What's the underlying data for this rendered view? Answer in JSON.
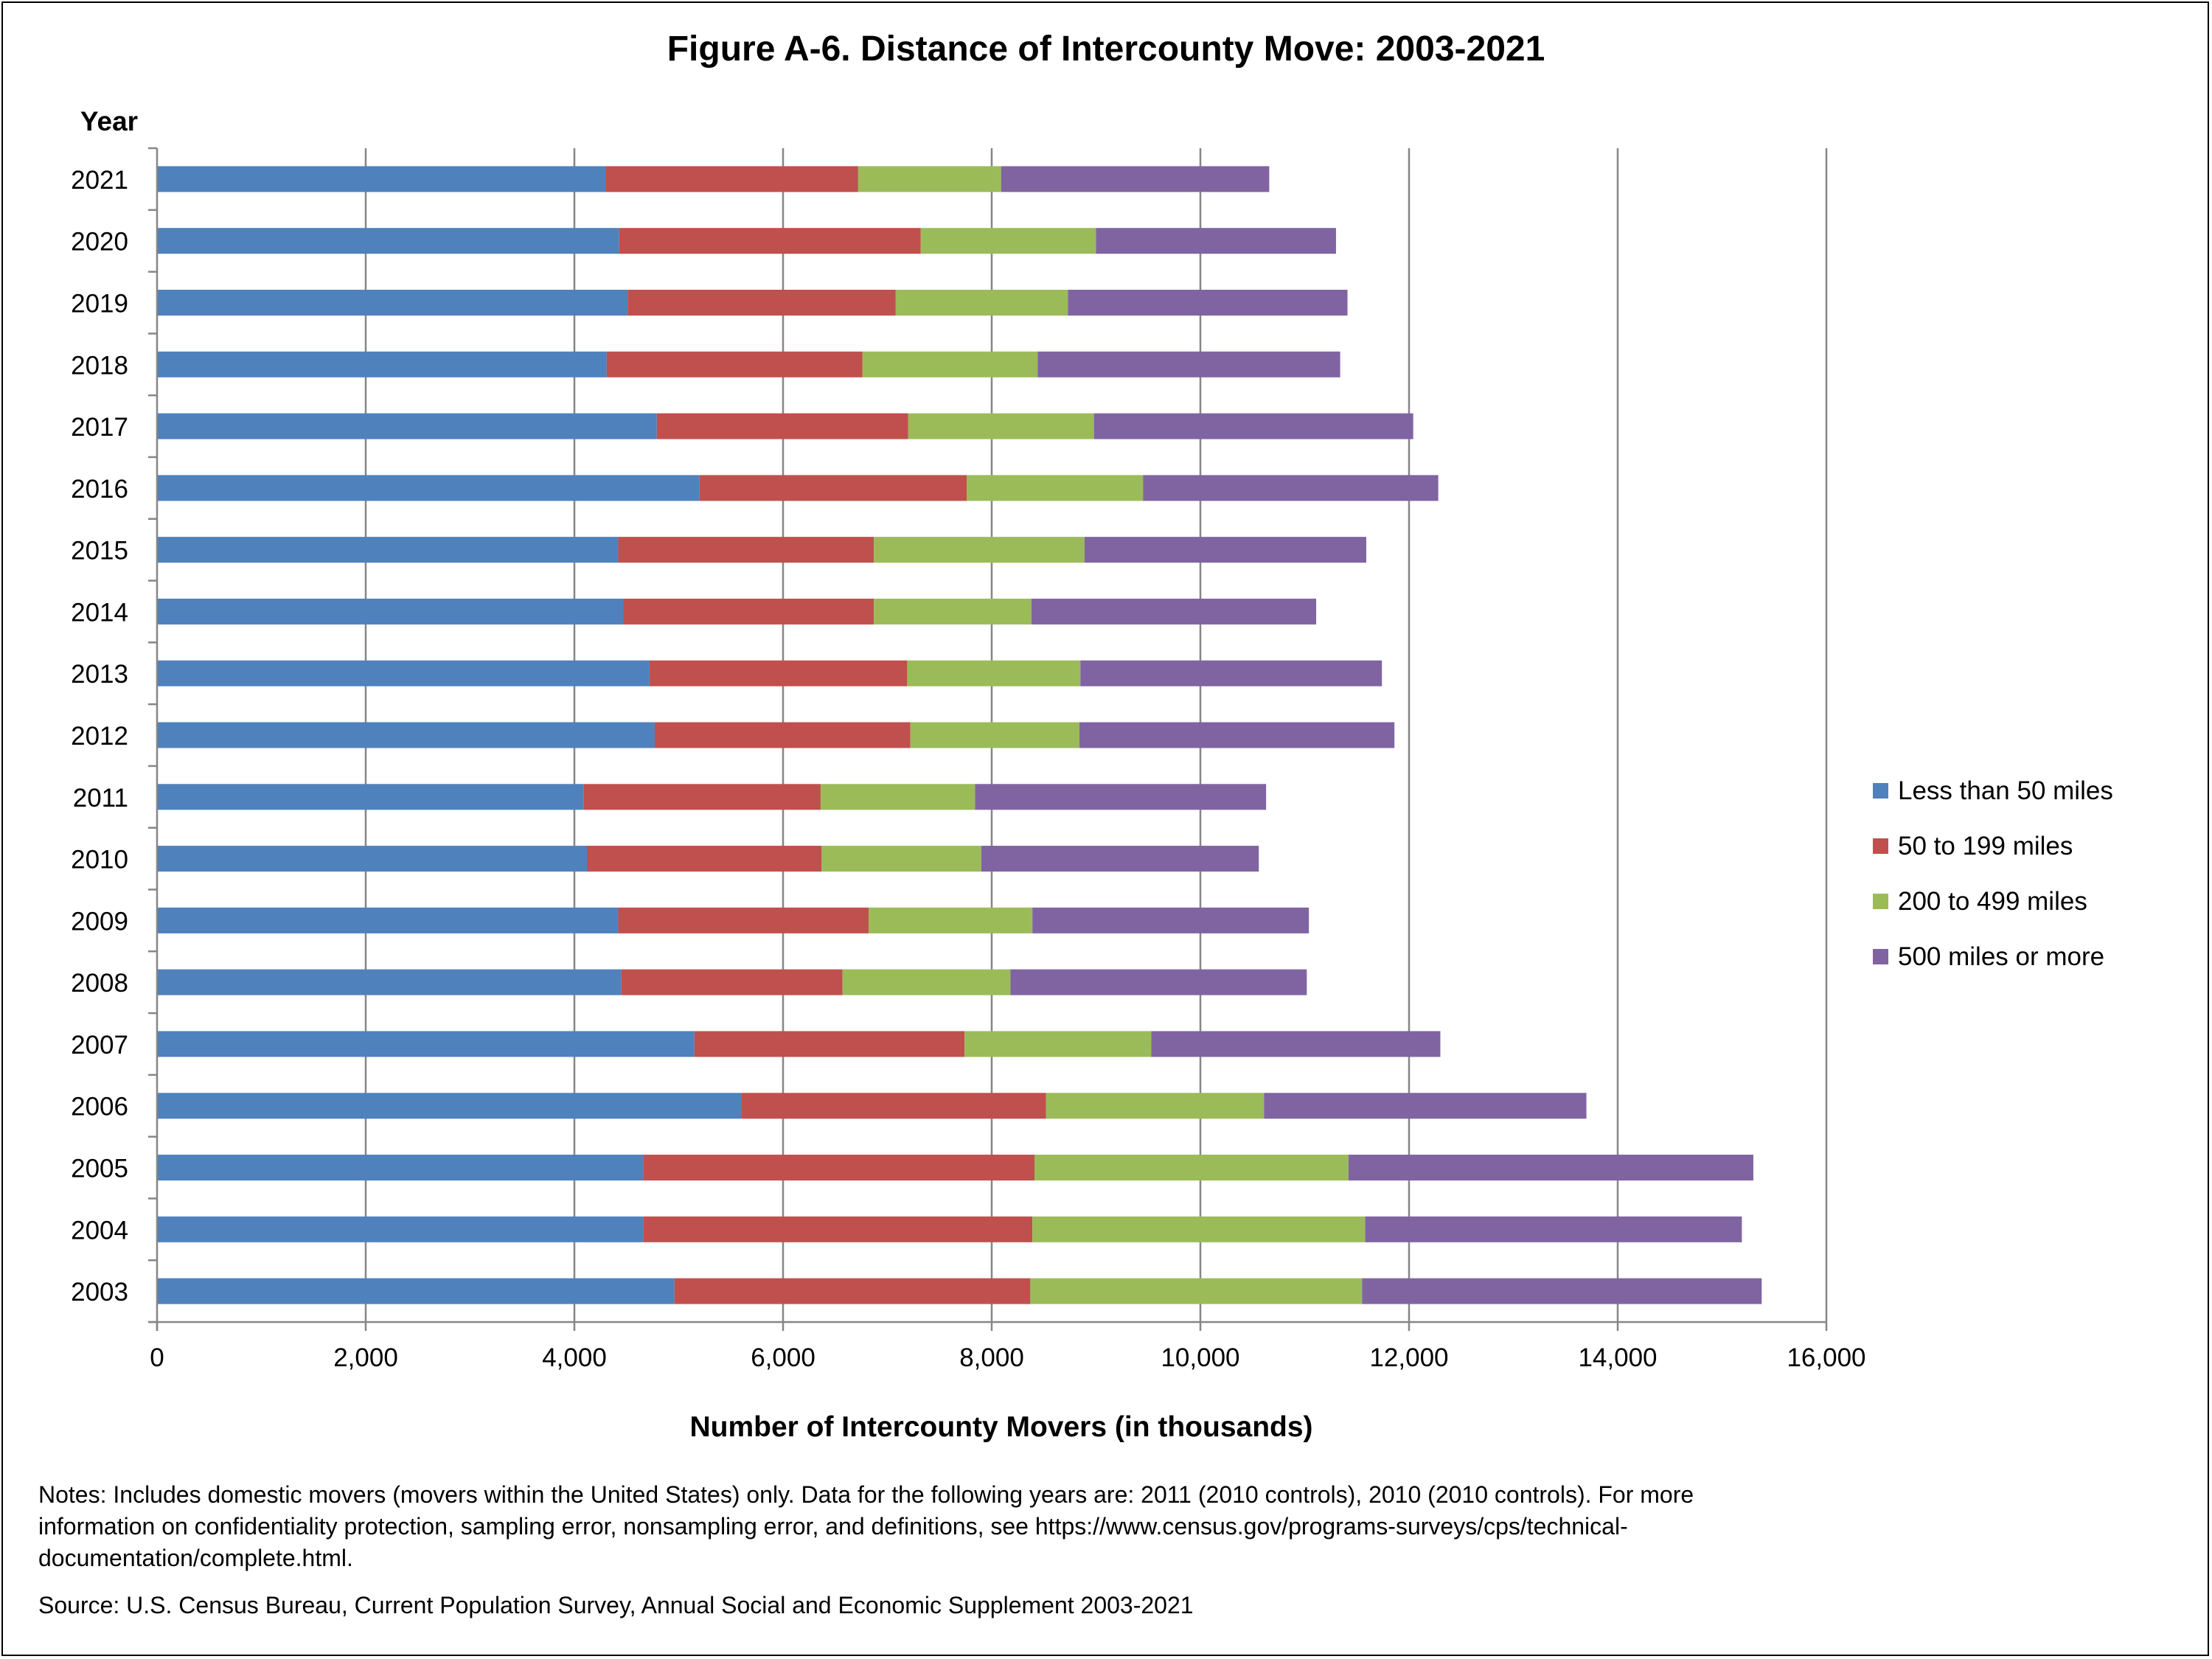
{
  "chart_data": {
    "type": "bar",
    "orientation": "horizontal",
    "stacked": true,
    "title": "Figure A-6. Distance of Intercounty Move: 2003-2021",
    "ylabel": "Year",
    "xlabel": "Number of Intercounty Movers (in thousands)",
    "xlim": [
      0,
      16000
    ],
    "xticks": [
      0,
      2000,
      4000,
      6000,
      8000,
      10000,
      12000,
      14000,
      16000
    ],
    "xtick_labels": [
      "0",
      "2,000",
      "4,000",
      "6,000",
      "8,000",
      "10,000",
      "12,000",
      "14,000",
      "16,000"
    ],
    "grid": true,
    "legend_position": "right",
    "categories": [
      "2021",
      "2020",
      "2019",
      "2018",
      "2017",
      "2016",
      "2015",
      "2014",
      "2013",
      "2012",
      "2011",
      "2010",
      "2009",
      "2008",
      "2007",
      "2006",
      "2005",
      "2004",
      "2003"
    ],
    "series": [
      {
        "name": "Less than 50 miles",
        "color": "#4F81BD",
        "values": [
          4300,
          4430,
          4510,
          4310,
          4790,
          5200,
          4420,
          4470,
          4720,
          4770,
          4090,
          4120,
          4420,
          4450,
          5150,
          5600,
          4660,
          4660,
          4960
        ]
      },
      {
        "name": "50 to 199 miles",
        "color": "#C0504D",
        "values": [
          2420,
          2890,
          2570,
          2450,
          2410,
          2560,
          2450,
          2400,
          2470,
          2450,
          2270,
          2250,
          2400,
          2120,
          2590,
          2920,
          3750,
          3730,
          3410
        ]
      },
      {
        "name": "200 to 499 miles",
        "color": "#9BBB59",
        "values": [
          1370,
          1680,
          1650,
          1680,
          1780,
          1690,
          2020,
          1510,
          1660,
          1620,
          1480,
          1530,
          1570,
          1610,
          1790,
          2090,
          3010,
          3190,
          3180
        ]
      },
      {
        "name": "500 miles or more",
        "color": "#8064A2",
        "values": [
          2570,
          2300,
          2680,
          2900,
          3060,
          2830,
          2700,
          2730,
          2890,
          3020,
          2790,
          2660,
          2650,
          2840,
          2770,
          3090,
          3880,
          3610,
          3830
        ]
      }
    ]
  },
  "notes": {
    "line1": "Notes: Includes domestic movers (movers within the United States) only.  Data for the following years are: 2011 (2010 controls), 2010 (2010 controls). For more",
    "line2": "information on confidentiality protection, sampling error, nonsampling error, and definitions, see https://www.census.gov/programs-surveys/cps/technical-",
    "line3": "documentation/complete.html.",
    "source": "Source: U.S. Census Bureau, Current Population Survey, Annual Social and Economic Supplement  2003-2021"
  }
}
